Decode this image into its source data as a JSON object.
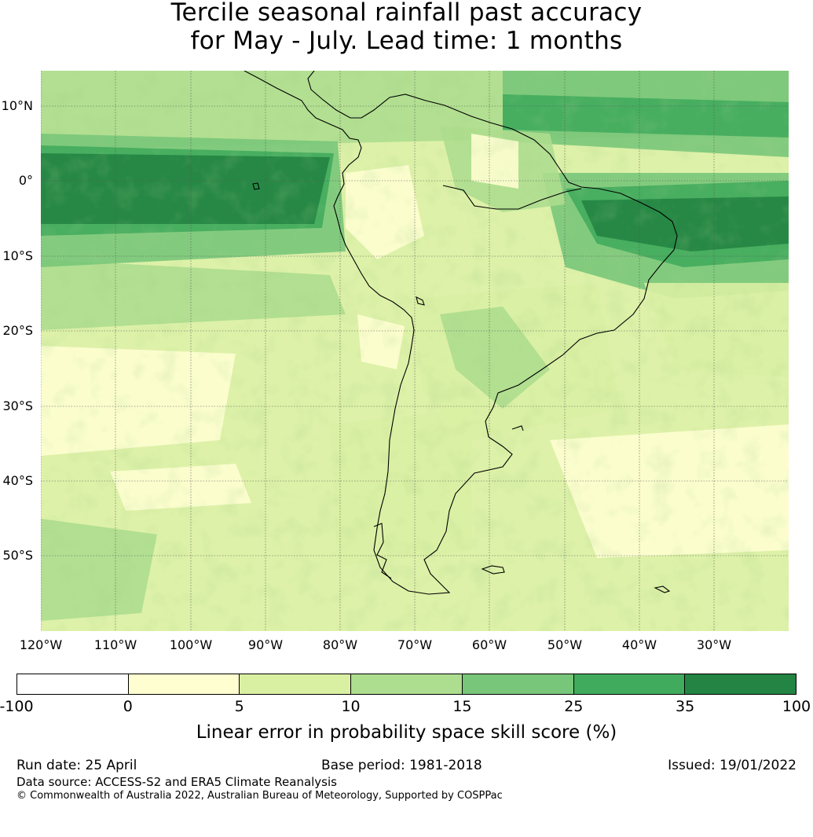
{
  "title": {
    "line1": "Tercile seasonal rainfall past accuracy",
    "line2": "for May - July. Lead time: 1 months"
  },
  "map": {
    "lat_labels": [
      "10°N",
      "0°",
      "10°S",
      "20°S",
      "30°S",
      "40°S",
      "50°S"
    ],
    "lon_labels": [
      "120°W",
      "110°W",
      "100°W",
      "90°W",
      "80°W",
      "70°W",
      "60°W",
      "50°W",
      "40°W",
      "30°W"
    ],
    "colors": {
      "ocean_base": "#fefed0",
      "coastline": "#000000",
      "gridline": "#555555"
    }
  },
  "colorbar": {
    "bins": [
      {
        "from": "-100",
        "to": "0",
        "color": "#ffffff"
      },
      {
        "from": "0",
        "to": "5",
        "color": "#fefed0"
      },
      {
        "from": "5",
        "to": "10",
        "color": "#d9f0a3"
      },
      {
        "from": "10",
        "to": "15",
        "color": "#addd8e"
      },
      {
        "from": "15",
        "to": "25",
        "color": "#78c679"
      },
      {
        "from": "25",
        "to": "35",
        "color": "#41ab5d"
      },
      {
        "from": "35",
        "to": "100",
        "color": "#238443"
      }
    ],
    "ticks": [
      "-100",
      "0",
      "5",
      "10",
      "15",
      "25",
      "35",
      "100"
    ],
    "label": "Linear error in probability space skill score (%)"
  },
  "footer": {
    "run_date": "Run date: 25 April",
    "base_period": "Base period: 1981-2018",
    "issued": "Issued: 19/01/2022",
    "data_source": "Data source: ACCESS-S2 and ERA5 Climate Reanalysis",
    "copyright": "© Commonwealth of Australia 2022, Australian Bureau of Meteorology, Supported by COSPPac"
  }
}
